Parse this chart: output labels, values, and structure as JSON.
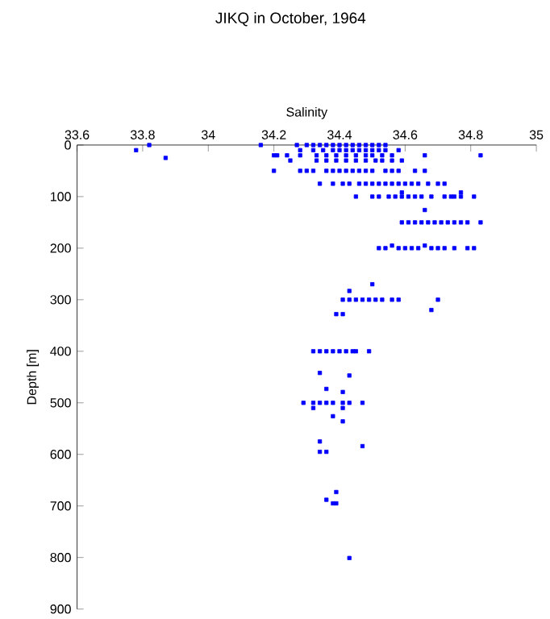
{
  "chart_data": {
    "type": "scatter",
    "title": "JIKQ in October, 1964",
    "xlabel": "Salinity",
    "ylabel": "Depth [m]",
    "xlim": [
      33.6,
      35
    ],
    "xticks": [
      33.6,
      33.8,
      34,
      34.2,
      34.4,
      34.6,
      34.8,
      35
    ],
    "ylim": [
      900,
      0
    ],
    "yticks": [
      0,
      100,
      200,
      300,
      400,
      500,
      600,
      700,
      800,
      900
    ],
    "marker": "square",
    "grid": false,
    "color": "#0000ff",
    "x": [
      33.82,
      34.16,
      34.27,
      34.3,
      34.32,
      34.34,
      34.36,
      34.38,
      34.4,
      34.42,
      34.44,
      34.46,
      34.48,
      34.5,
      34.52,
      34.54,
      33.78,
      34.28,
      34.32,
      34.35,
      34.38,
      34.4,
      34.42,
      34.44,
      34.46,
      34.48,
      34.5,
      34.52,
      34.54,
      34.58,
      34.2,
      34.21,
      34.24,
      34.28,
      34.33,
      34.36,
      34.39,
      34.42,
      34.45,
      34.48,
      34.5,
      34.53,
      34.56,
      34.66,
      34.83,
      33.87,
      34.25,
      34.33,
      34.36,
      34.39,
      34.42,
      34.45,
      34.48,
      34.51,
      34.53,
      34.56,
      34.59,
      34.2,
      34.28,
      34.3,
      34.32,
      34.36,
      34.38,
      34.4,
      34.42,
      34.44,
      34.46,
      34.48,
      34.5,
      34.54,
      34.56,
      34.58,
      34.63,
      34.66,
      34.34,
      34.38,
      34.41,
      34.43,
      34.46,
      34.48,
      34.5,
      34.52,
      34.54,
      34.56,
      34.58,
      34.6,
      34.62,
      34.64,
      34.67,
      34.7,
      34.72,
      34.45,
      34.5,
      34.52,
      34.55,
      34.57,
      34.59,
      34.61,
      34.63,
      34.65,
      34.68,
      34.72,
      34.74,
      34.75,
      34.77,
      34.81,
      34.59,
      34.77,
      34.66,
      34.59,
      34.61,
      34.63,
      34.65,
      34.67,
      34.69,
      34.71,
      34.73,
      34.75,
      34.77,
      34.79,
      34.83,
      34.52,
      34.54,
      34.56,
      34.58,
      34.6,
      34.62,
      34.64,
      34.66,
      34.68,
      34.7,
      34.72,
      34.75,
      34.79,
      34.81,
      34.5,
      34.43,
      34.41,
      34.43,
      34.45,
      34.47,
      34.49,
      34.51,
      34.53,
      34.56,
      34.58,
      34.7,
      34.68,
      34.39,
      34.41,
      34.32,
      34.34,
      34.36,
      34.38,
      34.4,
      34.42,
      34.44,
      34.45,
      34.49,
      34.34,
      34.43,
      34.36,
      34.41,
      34.29,
      34.32,
      34.34,
      34.36,
      34.38,
      34.41,
      34.43,
      34.47,
      34.32,
      34.41,
      34.38,
      34.41,
      34.34,
      34.47,
      34.34,
      34.36,
      34.39,
      34.36,
      34.38,
      34.39,
      34.43
    ],
    "values": [
      0,
      0,
      0,
      0,
      0,
      0,
      0,
      0,
      0,
      0,
      0,
      0,
      0,
      0,
      0,
      0,
      10,
      10,
      10,
      10,
      10,
      10,
      10,
      10,
      10,
      10,
      10,
      10,
      10,
      10,
      20,
      20,
      20,
      20,
      20,
      20,
      20,
      20,
      20,
      20,
      20,
      20,
      20,
      20,
      20,
      25,
      30,
      30,
      30,
      30,
      30,
      30,
      30,
      30,
      30,
      30,
      30,
      50,
      50,
      50,
      50,
      50,
      50,
      50,
      50,
      50,
      50,
      50,
      50,
      50,
      50,
      50,
      50,
      50,
      75,
      75,
      75,
      75,
      75,
      75,
      75,
      75,
      75,
      75,
      75,
      75,
      75,
      75,
      75,
      75,
      75,
      100,
      100,
      100,
      100,
      100,
      100,
      100,
      100,
      100,
      100,
      100,
      100,
      100,
      100,
      100,
      92,
      92,
      126,
      150,
      150,
      150,
      150,
      150,
      150,
      150,
      150,
      150,
      150,
      150,
      150,
      200,
      200,
      195,
      200,
      200,
      200,
      200,
      195,
      200,
      200,
      200,
      200,
      200,
      200,
      270,
      283,
      300,
      300,
      300,
      300,
      300,
      300,
      300,
      300,
      300,
      300,
      320,
      328,
      328,
      400,
      400,
      400,
      400,
      400,
      400,
      400,
      400,
      400,
      442,
      447,
      473,
      479,
      500,
      500,
      500,
      500,
      500,
      500,
      500,
      500,
      510,
      510,
      526,
      536,
      575,
      584,
      595,
      595,
      673,
      688,
      695,
      695,
      801
    ]
  }
}
